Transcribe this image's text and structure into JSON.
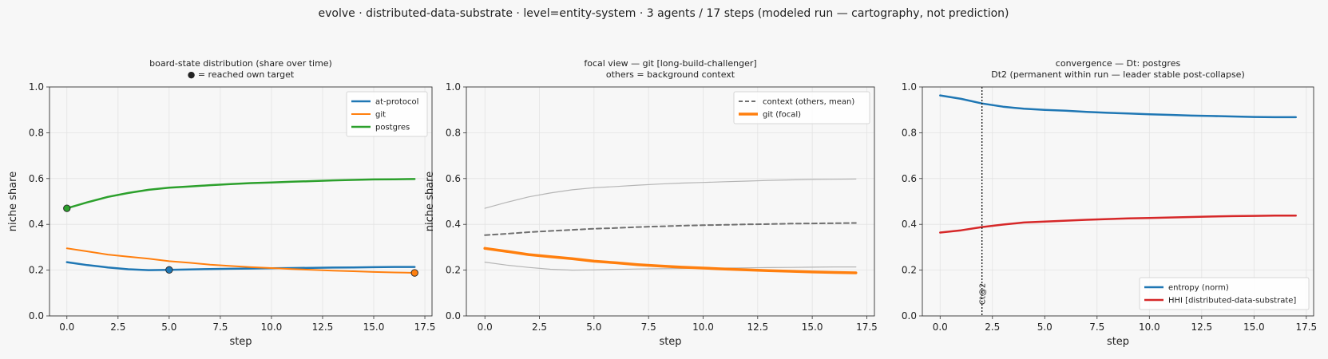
{
  "suptitle": "evolve · distributed-data-substrate · level=entity-system · 3 agents / 17 steps   (modeled run — cartography, not prediction)",
  "colors": {
    "background": "#f7f7f7",
    "at_protocol": "#1f77b4",
    "git": "#ff7f0e",
    "postgres": "#2ca02c",
    "context_mean": "#707070",
    "context_thin": "#b5b5b5",
    "entropy": "#1f77b4",
    "hhi": "#d62728"
  },
  "chart_data": [
    {
      "type": "line",
      "title": [
        "board-state distribution (share over time)",
        "● = reached own target"
      ],
      "xlabel": "step",
      "ylabel": "niche share",
      "xlim": [
        -0.85,
        17.85
      ],
      "ylim": [
        0,
        1
      ],
      "xticks": [
        "0.0",
        "2.5",
        "5.0",
        "7.5",
        "10.0",
        "12.5",
        "15.0",
        "17.5"
      ],
      "yticks": [
        "0.0",
        "0.2",
        "0.4",
        "0.6",
        "0.8",
        "1.0"
      ],
      "grid": true,
      "legend_position": "top-right",
      "x": [
        0,
        1,
        2,
        3,
        4,
        5,
        6,
        7,
        8,
        9,
        10,
        11,
        12,
        13,
        14,
        15,
        16,
        17
      ],
      "series": [
        {
          "name": "at-protocol",
          "color": "#1f77b4",
          "width": 2.5,
          "values": [
            0.235,
            0.222,
            0.212,
            0.204,
            0.2,
            0.201,
            0.203,
            0.205,
            0.206,
            0.207,
            0.208,
            0.209,
            0.21,
            0.211,
            0.212,
            0.213,
            0.214,
            0.214
          ],
          "marker": {
            "x": 5,
            "y": 0.201
          }
        },
        {
          "name": "git",
          "color": "#ff7f0e",
          "width": 2,
          "values": [
            0.295,
            0.282,
            0.268,
            0.259,
            0.25,
            0.239,
            0.232,
            0.224,
            0.218,
            0.213,
            0.209,
            0.205,
            0.201,
            0.198,
            0.195,
            0.192,
            0.19,
            0.188
          ],
          "marker": {
            "x": 17,
            "y": 0.188
          }
        },
        {
          "name": "postgres",
          "color": "#2ca02c",
          "width": 2.5,
          "values": [
            0.47,
            0.496,
            0.52,
            0.537,
            0.551,
            0.56,
            0.565,
            0.571,
            0.576,
            0.58,
            0.583,
            0.586,
            0.589,
            0.592,
            0.594,
            0.596,
            0.597,
            0.598
          ],
          "marker": {
            "x": 0,
            "y": 0.47
          }
        }
      ]
    },
    {
      "type": "line",
      "title": [
        "focal view — git  [long-build-challenger]",
        "others = background context"
      ],
      "xlabel": "step",
      "ylabel": "niche share",
      "xlim": [
        -0.85,
        17.85
      ],
      "ylim": [
        0,
        1
      ],
      "xticks": [
        "0.0",
        "2.5",
        "5.0",
        "7.5",
        "10.0",
        "12.5",
        "15.0",
        "17.5"
      ],
      "yticks": [
        "0.0",
        "0.2",
        "0.4",
        "0.6",
        "0.8",
        "1.0"
      ],
      "grid": true,
      "legend_position": "top-right",
      "x": [
        0,
        1,
        2,
        3,
        4,
        5,
        6,
        7,
        8,
        9,
        10,
        11,
        12,
        13,
        14,
        15,
        16,
        17
      ],
      "series": [
        {
          "name": "",
          "color": "#b5b5b5",
          "width": 1.2,
          "values": [
            0.47,
            0.496,
            0.52,
            0.537,
            0.551,
            0.56,
            0.565,
            0.571,
            0.576,
            0.58,
            0.583,
            0.586,
            0.589,
            0.592,
            0.594,
            0.596,
            0.597,
            0.598
          ]
        },
        {
          "name": "",
          "color": "#b5b5b5",
          "width": 1.2,
          "values": [
            0.235,
            0.222,
            0.212,
            0.204,
            0.2,
            0.201,
            0.203,
            0.205,
            0.206,
            0.207,
            0.208,
            0.209,
            0.21,
            0.211,
            0.212,
            0.213,
            0.214,
            0.214
          ]
        },
        {
          "name": "context (others, mean)",
          "color": "#707070",
          "width": 2,
          "dashed": true,
          "values": [
            0.353,
            0.359,
            0.366,
            0.371,
            0.376,
            0.381,
            0.384,
            0.388,
            0.391,
            0.394,
            0.396,
            0.398,
            0.4,
            0.401,
            0.403,
            0.404,
            0.405,
            0.406
          ]
        },
        {
          "name": "git (focal)",
          "color": "#ff7f0e",
          "width": 3.5,
          "values": [
            0.295,
            0.282,
            0.268,
            0.259,
            0.25,
            0.239,
            0.232,
            0.224,
            0.218,
            0.213,
            0.209,
            0.205,
            0.201,
            0.198,
            0.195,
            0.192,
            0.19,
            0.188
          ]
        }
      ]
    },
    {
      "type": "line",
      "title": [
        "convergence — Dt: postgres",
        "Dt2 (permanent within run — leader stable post-collapse)"
      ],
      "xlabel": "step",
      "ylabel": "",
      "xlim": [
        -0.85,
        17.85
      ],
      "ylim": [
        0,
        1
      ],
      "xticks": [
        "0.0",
        "2.5",
        "5.0",
        "7.5",
        "10.0",
        "12.5",
        "15.0",
        "17.5"
      ],
      "yticks": [
        "0.0",
        "0.2",
        "0.4",
        "0.6",
        "0.8",
        "1.0"
      ],
      "grid": true,
      "legend_position": "bottom-right",
      "x": [
        0,
        1,
        2,
        3,
        4,
        5,
        6,
        7,
        8,
        9,
        10,
        11,
        12,
        13,
        14,
        15,
        16,
        17
      ],
      "vline": {
        "x": 2,
        "label": "Ct@2"
      },
      "series": [
        {
          "name": "entropy (norm)",
          "color": "#1f77b4",
          "width": 2.5,
          "values": [
            0.963,
            0.948,
            0.928,
            0.914,
            0.905,
            0.9,
            0.896,
            0.891,
            0.887,
            0.884,
            0.881,
            0.878,
            0.875,
            0.873,
            0.871,
            0.869,
            0.868,
            0.868
          ]
        },
        {
          "name": "HHI [distributed-data-substrate]",
          "color": "#d62728",
          "width": 2.5,
          "values": [
            0.364,
            0.374,
            0.388,
            0.399,
            0.408,
            0.412,
            0.416,
            0.42,
            0.423,
            0.426,
            0.428,
            0.43,
            0.432,
            0.434,
            0.436,
            0.437,
            0.438,
            0.438
          ]
        }
      ]
    }
  ]
}
